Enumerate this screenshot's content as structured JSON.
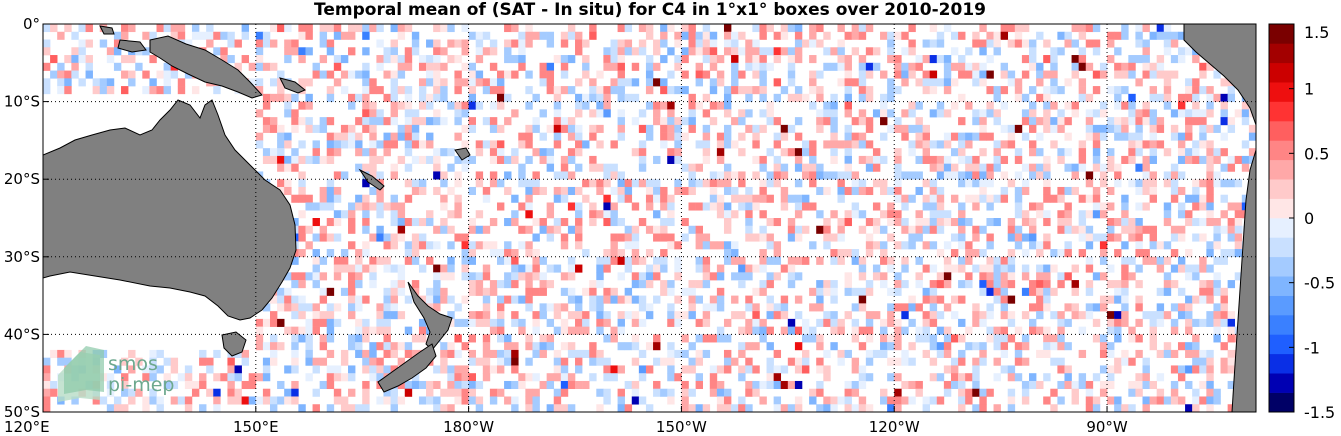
{
  "title": "Temporal mean of (SAT - In situ) for C4 in 1°x1° boxes over 2010-2019",
  "map": {
    "lon_range": [
      120,
      291
    ],
    "lat_range": [
      -50,
      0
    ],
    "cell_size_deg": 1,
    "land_color": "#808080",
    "ocean_nodata_color": "#ffffff",
    "grid": "on",
    "lon_ticks": [
      {
        "value": 120,
        "label": "120°E"
      },
      {
        "value": 150,
        "label": "150°E"
      },
      {
        "value": 180,
        "label": "180°W"
      },
      {
        "value": 210,
        "label": "150°W"
      },
      {
        "value": 240,
        "label": "120°W"
      },
      {
        "value": 270,
        "label": "90°W"
      }
    ],
    "lat_ticks": [
      {
        "value": 0,
        "label": "0°"
      },
      {
        "value": -10,
        "label": "10°S"
      },
      {
        "value": -20,
        "label": "20°S"
      },
      {
        "value": -30,
        "label": "30°S"
      },
      {
        "value": -40,
        "label": "40°S"
      },
      {
        "value": -50,
        "label": "50°S"
      }
    ]
  },
  "colorbar": {
    "min": -1.5,
    "max": 1.5,
    "steps": 20,
    "ticks": [
      {
        "value": 1.5,
        "label": "1.5"
      },
      {
        "value": 1,
        "label": "1"
      },
      {
        "value": 0.5,
        "label": "0.5"
      },
      {
        "value": 0,
        "label": "0"
      },
      {
        "value": -0.5,
        "label": "-0.5"
      },
      {
        "value": -1,
        "label": "-1"
      },
      {
        "value": -1.5,
        "label": "-1.5"
      }
    ],
    "colors": [
      "#000066",
      "#0000b3",
      "#0a2fe6",
      "#1f5fff",
      "#3a80ff",
      "#5a9bff",
      "#7fb5ff",
      "#a4cbff",
      "#c9e0ff",
      "#e6f0ff",
      "#ffe6e6",
      "#ffcaca",
      "#ffa8a8",
      "#ff8585",
      "#ff5f5f",
      "#ff3333",
      "#ee0f0f",
      "#cc0000",
      "#a30000",
      "#7a0000"
    ]
  },
  "logo": {
    "line1": "smos",
    "line2": "pi-mep"
  },
  "icons": {
    "logo": "smos-logo-icon"
  }
}
